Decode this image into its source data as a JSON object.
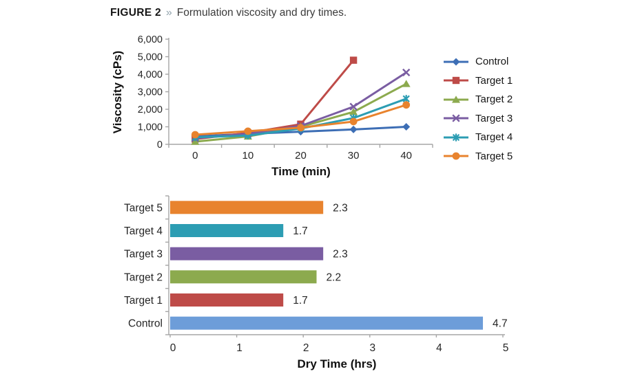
{
  "figure": {
    "label": "FIGURE 2",
    "separator": "»",
    "title": "Formulation viscosity and dry times."
  },
  "colors": {
    "control_line": "#3D6EB5",
    "target1": "#BE4B48",
    "target2": "#8CAA4E",
    "target3": "#7A5DA2",
    "target4": "#2C9DB3",
    "target5": "#E8832E",
    "control_bar": "#6D9DD9",
    "axis": "#a6a6a6",
    "tick_text": "#262626",
    "separator_accent": "#93a4ae"
  },
  "chart_data": [
    {
      "type": "line",
      "title": "",
      "xlabel": "Time (min)",
      "ylabel": "Viscosity (cPs)",
      "x": [
        0,
        10,
        20,
        30,
        40
      ],
      "x_tick_labels": [
        "0",
        "10",
        "20",
        "30",
        "40"
      ],
      "y_tick_labels": [
        "0",
        "1,000",
        "2,000",
        "3,000",
        "4,000",
        "5,000",
        "6,000"
      ],
      "ylim": [
        0,
        6000
      ],
      "y_tick_step": 1000,
      "grid": false,
      "legend_position": "right",
      "series": [
        {
          "name": "Control",
          "marker": "diamond",
          "color": "#3D6EB5",
          "values": [
            450,
            600,
            720,
            850,
            1000
          ]
        },
        {
          "name": "Target 1",
          "marker": "square",
          "color": "#BE4B48",
          "values": [
            300,
            650,
            1150,
            4800,
            null
          ]
        },
        {
          "name": "Target 2",
          "marker": "triangle",
          "color": "#8CAA4E",
          "values": [
            150,
            450,
            1000,
            1850,
            3450
          ]
        },
        {
          "name": "Target 3",
          "marker": "x",
          "color": "#7A5DA2",
          "values": [
            350,
            600,
            1050,
            2150,
            4100
          ]
        },
        {
          "name": "Target 4",
          "marker": "asterisk",
          "color": "#2C9DB3",
          "values": [
            400,
            500,
            900,
            1500,
            2600
          ]
        },
        {
          "name": "Target 5",
          "marker": "circle",
          "color": "#E8832E",
          "values": [
            550,
            750,
            950,
            1300,
            2250
          ]
        }
      ]
    },
    {
      "type": "bar",
      "orientation": "horizontal",
      "title": "",
      "xlabel": "Dry Time (hrs)",
      "ylabel": "",
      "categories": [
        "Target 5",
        "Target 4",
        "Target 3",
        "Target 2",
        "Target 1",
        "Control"
      ],
      "values": [
        2.3,
        1.7,
        2.3,
        2.2,
        1.7,
        4.7
      ],
      "value_labels": [
        "2.3",
        "1.7",
        "2.3",
        "2.2",
        "1.7",
        "4.7"
      ],
      "bar_colors": [
        "#E8832E",
        "#2C9DB3",
        "#7A5DA2",
        "#8CAA4E",
        "#BE4B48",
        "#6D9DD9"
      ],
      "xlim": [
        0,
        5
      ],
      "x_tick_labels": [
        "0",
        "1",
        "2",
        "3",
        "4",
        "5"
      ],
      "grid": false
    }
  ]
}
